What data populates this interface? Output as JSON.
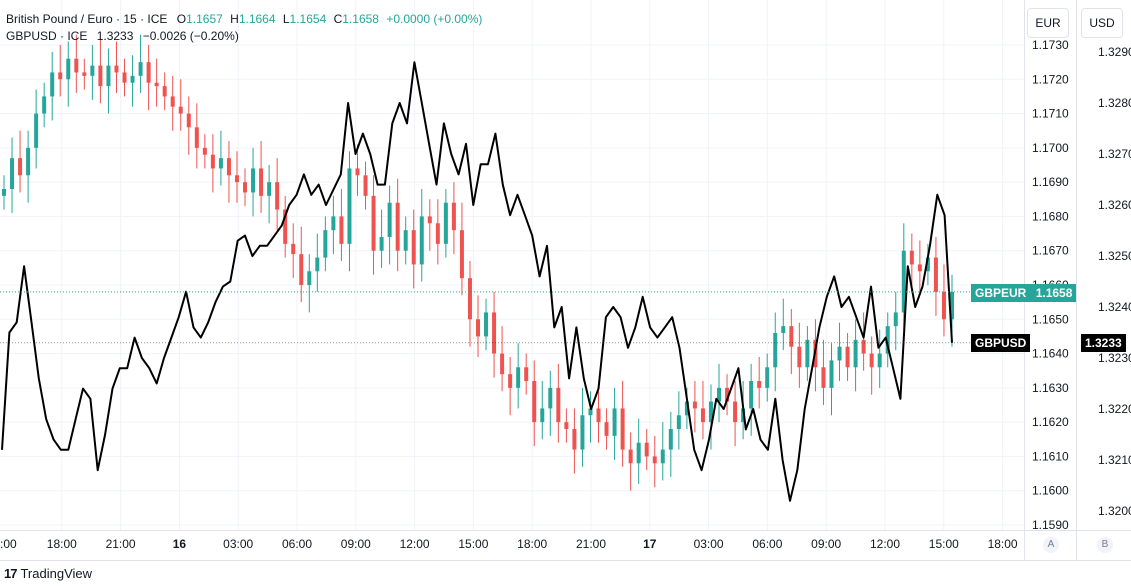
{
  "legend": {
    "row1": {
      "symbol": "British Pound / Euro · 15 · ICE",
      "o_label": "O",
      "o_value": "1.1657",
      "h_label": "H",
      "h_value": "1.1664",
      "l_label": "L",
      "l_value": "1.1654",
      "c_label": "C",
      "c_value": "1.1658",
      "change": "+0.0000 (+0.00%)"
    },
    "row2": {
      "symbol": "GBPUSD · ICE",
      "last": "1.3233",
      "change": "−0.0026 (−0.20%)"
    }
  },
  "axes": {
    "left_currency": "EUR",
    "right_currency": "USD",
    "eur_ticks": [
      "1.1730",
      "1.1720",
      "1.1710",
      "1.1700",
      "1.1690",
      "1.1680",
      "1.1670",
      "1.1660",
      "1.1650",
      "1.1640",
      "1.1630",
      "1.1620",
      "1.1610",
      "1.1600",
      "1.1590"
    ],
    "usd_ticks": [
      "1.3290",
      "1.3280",
      "1.3270",
      "1.3260",
      "1.3250",
      "1.3240",
      "1.3230",
      "1.3220",
      "1.3210",
      "1.3200"
    ],
    "time_ticks": [
      ":00",
      "18:00",
      "21:00",
      "16",
      "03:00",
      "06:00",
      "09:00",
      "12:00",
      "15:00",
      "18:00",
      "21:00",
      "17",
      "03:00",
      "06:00",
      "09:00",
      "12:00",
      "15:00",
      "18:00"
    ],
    "scale_button_a": "A",
    "scale_button_b": "B"
  },
  "badges": {
    "gbpeur_label": "GBPEUR",
    "gbpeur_value": "1.1658",
    "gbpusd_label": "GBPUSD",
    "gbpusd_value": "1.3233"
  },
  "branding": {
    "logo_mark": "17",
    "name": "TradingView"
  },
  "colors": {
    "up": "#26a69a",
    "down": "#ef5350",
    "line": "#000000",
    "badge_eur": "#26a69a",
    "badge_usd": "#000000"
  },
  "chart_data": {
    "type": "line",
    "title": "",
    "interval": "15",
    "x_axis_ticks": [
      ":00",
      "18:00",
      "21:00",
      "16",
      "03:00",
      "06:00",
      "09:00",
      "12:00",
      "15:00",
      "18:00",
      "21:00",
      "17",
      "03:00",
      "06:00",
      "09:00",
      "12:00",
      "15:00",
      "18:00"
    ],
    "series": [
      {
        "name": "British Pound / Euro",
        "style": "candlestick",
        "axis": "EUR",
        "ylim": [
          1.1588,
          1.1735
        ],
        "close": [
          1.1688,
          1.1697,
          1.1692,
          1.17,
          1.171,
          1.1715,
          1.1722,
          1.172,
          1.1726,
          1.1722,
          1.1721,
          1.1724,
          1.1718,
          1.1724,
          1.1722,
          1.1719,
          1.1721,
          1.1725,
          1.1719,
          1.1718,
          1.1715,
          1.1712,
          1.171,
          1.1706,
          1.17,
          1.1698,
          1.1694,
          1.1697,
          1.1692,
          1.169,
          1.1687,
          1.1694,
          1.1686,
          1.169,
          1.1682,
          1.1672,
          1.1669,
          1.166,
          1.1664,
          1.1668,
          1.1676,
          1.168,
          1.1672,
          1.1694,
          1.1692,
          1.1686,
          1.167,
          1.1674,
          1.1684,
          1.167,
          1.1676,
          1.1666,
          1.168,
          1.1678,
          1.1672,
          1.1684,
          1.1676,
          1.1662,
          1.165,
          1.1645,
          1.1652,
          1.164,
          1.1634,
          1.163,
          1.1636,
          1.1632,
          1.162,
          1.1624,
          1.163,
          1.162,
          1.1618,
          1.1612,
          1.1622,
          1.1624,
          1.162,
          1.1616,
          1.1624,
          1.1612,
          1.1608,
          1.1614,
          1.161,
          1.1608,
          1.1612,
          1.1618,
          1.1622,
          1.1626,
          1.1624,
          1.162,
          1.1626,
          1.163,
          1.1626,
          1.162,
          1.1624,
          1.1632,
          1.163,
          1.1636,
          1.1646,
          1.1648,
          1.1642,
          1.1636,
          1.1644,
          1.1636,
          1.163,
          1.1638,
          1.1642,
          1.1636,
          1.1644,
          1.164,
          1.1636,
          1.164,
          1.1648,
          1.1652,
          1.167,
          1.1666,
          1.1664,
          1.1668,
          1.1658,
          1.165,
          1.1658
        ],
        "last": 1.1658,
        "low": 1.1603,
        "high": 1.1727
      },
      {
        "name": "GBPUSD · ICE",
        "style": "line",
        "axis": "USD",
        "ylim": [
          1.3193,
          1.3295
        ],
        "values": [
          1.3212,
          1.3235,
          1.3237,
          1.3248,
          1.3237,
          1.3226,
          1.3218,
          1.3214,
          1.3212,
          1.3212,
          1.3218,
          1.3224,
          1.3222,
          1.3208,
          1.3215,
          1.3224,
          1.3228,
          1.3228,
          1.3234,
          1.323,
          1.3228,
          1.3225,
          1.323,
          1.3234,
          1.3238,
          1.3243,
          1.3236,
          1.3234,
          1.3237,
          1.3241,
          1.3244,
          1.3245,
          1.3253,
          1.3254,
          1.325,
          1.3252,
          1.3252,
          1.3254,
          1.3256,
          1.326,
          1.3262,
          1.3266,
          1.3262,
          1.3264,
          1.326,
          1.3263,
          1.3266,
          1.328,
          1.327,
          1.3274,
          1.327,
          1.3264,
          1.3264,
          1.3276,
          1.328,
          1.3276,
          1.3288,
          1.328,
          1.3272,
          1.3264,
          1.3276,
          1.327,
          1.3266,
          1.3272,
          1.326,
          1.3268,
          1.3268,
          1.3274,
          1.3264,
          1.3258,
          1.3262,
          1.3258,
          1.3254,
          1.3246,
          1.3252,
          1.3236,
          1.324,
          1.3226,
          1.3236,
          1.3226,
          1.322,
          1.3224,
          1.3238,
          1.324,
          1.3238,
          1.3232,
          1.3236,
          1.3242,
          1.3236,
          1.3234,
          1.3236,
          1.3238,
          1.3232,
          1.3222,
          1.3212,
          1.3208,
          1.3214,
          1.3222,
          1.322,
          1.3224,
          1.3228,
          1.3216,
          1.322,
          1.3214,
          1.3212,
          1.3222,
          1.321,
          1.3202,
          1.3208,
          1.322,
          1.3228,
          1.3236,
          1.3242,
          1.3246,
          1.324,
          1.3242,
          1.3238,
          1.3234,
          1.3244,
          1.3232,
          1.3234,
          1.3228,
          1.3222,
          1.3248,
          1.324,
          1.3244,
          1.3252,
          1.3262,
          1.3258,
          1.3233
        ],
        "last": 1.3233
      }
    ]
  }
}
